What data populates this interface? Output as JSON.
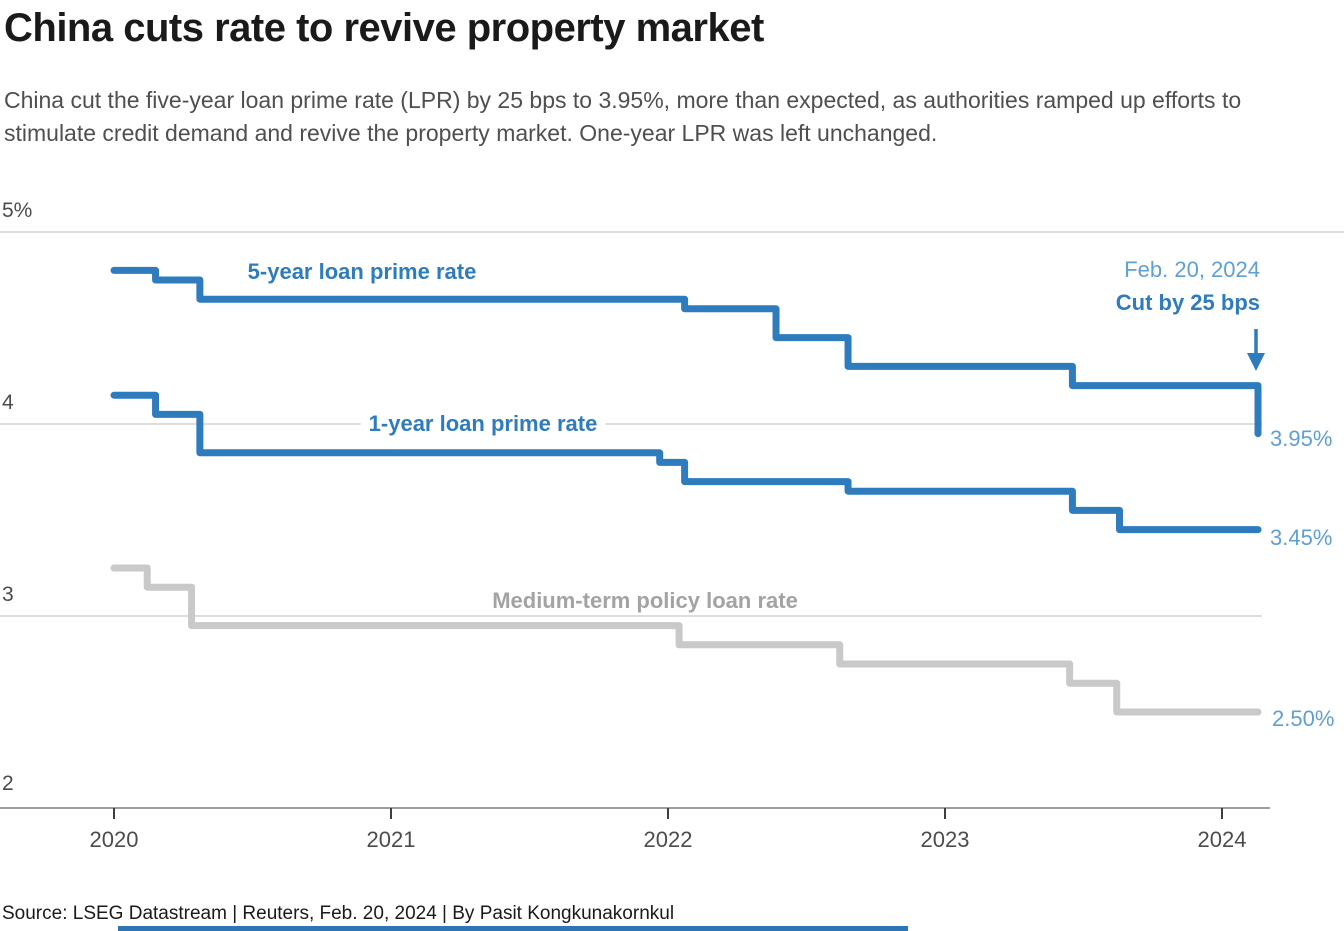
{
  "header": {
    "title": "China cuts rate to revive property market",
    "subtitle": "China cut the five-year loan prime rate (LPR) by 25 bps to 3.95%, more than expected, as authorities ramped up efforts to stimulate credit demand and revive the property market. One-year LPR was left unchanged."
  },
  "chart_data": {
    "type": "line",
    "line_style": "step-after",
    "title": "China cuts rate to revive property market",
    "xlabel": "",
    "ylabel": "%",
    "ylim": [
      2,
      5
    ],
    "xlim": [
      2019.6,
      2024.45
    ],
    "grid": "horizontal",
    "legend_position": "inline-labels",
    "yticks": [
      {
        "value": 5,
        "label": "5%"
      },
      {
        "value": 4,
        "label": "4"
      },
      {
        "value": 3,
        "label": "3"
      },
      {
        "value": 2,
        "label": "2"
      }
    ],
    "xticks": [
      "2020",
      "2021",
      "2022",
      "2023",
      "2024"
    ],
    "series": [
      {
        "name": "5-year loan prime rate",
        "color": "#2e7cbe",
        "end_value": 3.95,
        "end_label": "3.95%",
        "points": [
          [
            2020.0,
            4.8
          ],
          [
            2020.15,
            4.75
          ],
          [
            2020.31,
            4.65
          ],
          [
            2022.06,
            4.6
          ],
          [
            2022.39,
            4.45
          ],
          [
            2022.65,
            4.3
          ],
          [
            2023.46,
            4.2
          ],
          [
            2024.13,
            3.95
          ]
        ]
      },
      {
        "name": "1-year loan prime rate",
        "color": "#2e7cbe",
        "end_value": 3.45,
        "end_label": "3.45%",
        "points": [
          [
            2020.0,
            4.15
          ],
          [
            2020.15,
            4.05
          ],
          [
            2020.31,
            3.85
          ],
          [
            2021.97,
            3.8
          ],
          [
            2022.06,
            3.7
          ],
          [
            2022.65,
            3.65
          ],
          [
            2023.46,
            3.55
          ],
          [
            2023.63,
            3.45
          ],
          [
            2024.13,
            3.45
          ]
        ]
      },
      {
        "name": "Medium-term policy loan rate",
        "color": "#c9c9c9",
        "end_value": 2.5,
        "end_label": "2.50%",
        "points": [
          [
            2020.0,
            3.25
          ],
          [
            2020.12,
            3.15
          ],
          [
            2020.28,
            2.95
          ],
          [
            2022.04,
            2.85
          ],
          [
            2022.62,
            2.75
          ],
          [
            2023.45,
            2.65
          ],
          [
            2023.62,
            2.5
          ],
          [
            2024.13,
            2.5
          ]
        ]
      }
    ],
    "annotation": {
      "line1": "Feb. 20, 2024",
      "line2": "Cut by 25 bps",
      "x": 2024.13,
      "points_at": 3.95
    }
  },
  "colors": {
    "line_blue": "#2e7cbe",
    "light_blue_label": "#5e9fd6",
    "gray_line": "#c9c9c9",
    "gray_label": "#a3a3a3",
    "gridline": "#d2d2d2",
    "axis_line": "#9e9e9e",
    "tick_mark": "#3f3f3f",
    "bottom_bar": "#2e75b6"
  },
  "footer": {
    "source": "Source: LSEG Datastream | Reuters, Feb. 20, 2024 | By Pasit Kongkunakornkul"
  }
}
